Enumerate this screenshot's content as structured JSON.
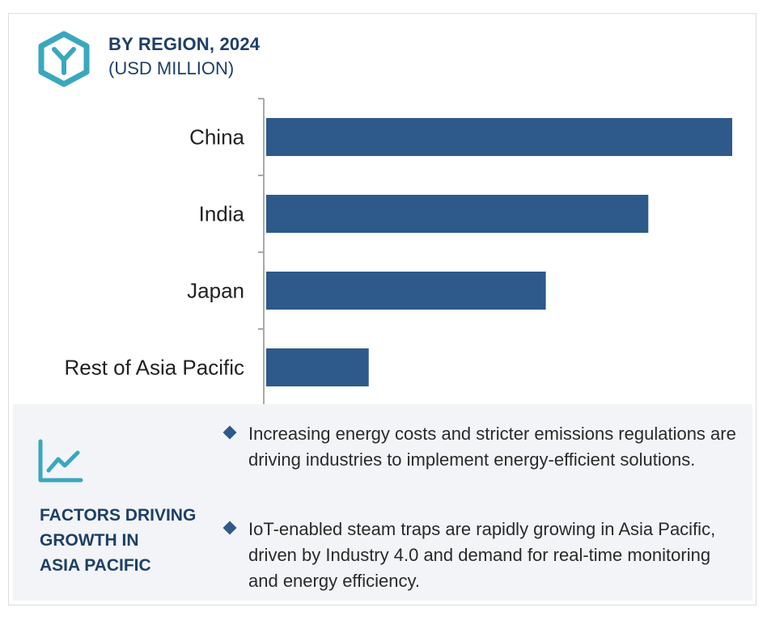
{
  "header": {
    "title": "BY REGION, 2024",
    "subtitle": "(USD MILLION)",
    "logo_icon": "hexagon-y-logo-icon"
  },
  "colors": {
    "bar": "#2d5a8a",
    "title": "#1e3f66",
    "accent": "#3aa7bf",
    "panel_bg": "#f2f4f7"
  },
  "chart_data": {
    "type": "bar",
    "orientation": "horizontal",
    "categories": [
      "China",
      "India",
      "Japan",
      "Rest of Asia Pacific"
    ],
    "values": [
      100,
      82,
      60,
      22
    ],
    "title": "BY REGION, 2024",
    "subtitle": "(USD MILLION)",
    "xlabel": "",
    "ylabel": "",
    "xlim": [
      0,
      100
    ],
    "grid": false,
    "legend": "none"
  },
  "factors": {
    "icon": "line-chart-icon",
    "title_lines": [
      "FACTORS DRIVING",
      "GROWTH IN",
      "ASIA PACIFIC"
    ],
    "bullets": [
      "Increasing energy costs and stricter emissions regulations are driving industries to implement energy-efficient solutions.",
      "IoT-enabled steam traps are rapidly growing in Asia Pacific, driven by Industry 4.0 and demand for real-time monitoring and energy efficiency."
    ]
  }
}
